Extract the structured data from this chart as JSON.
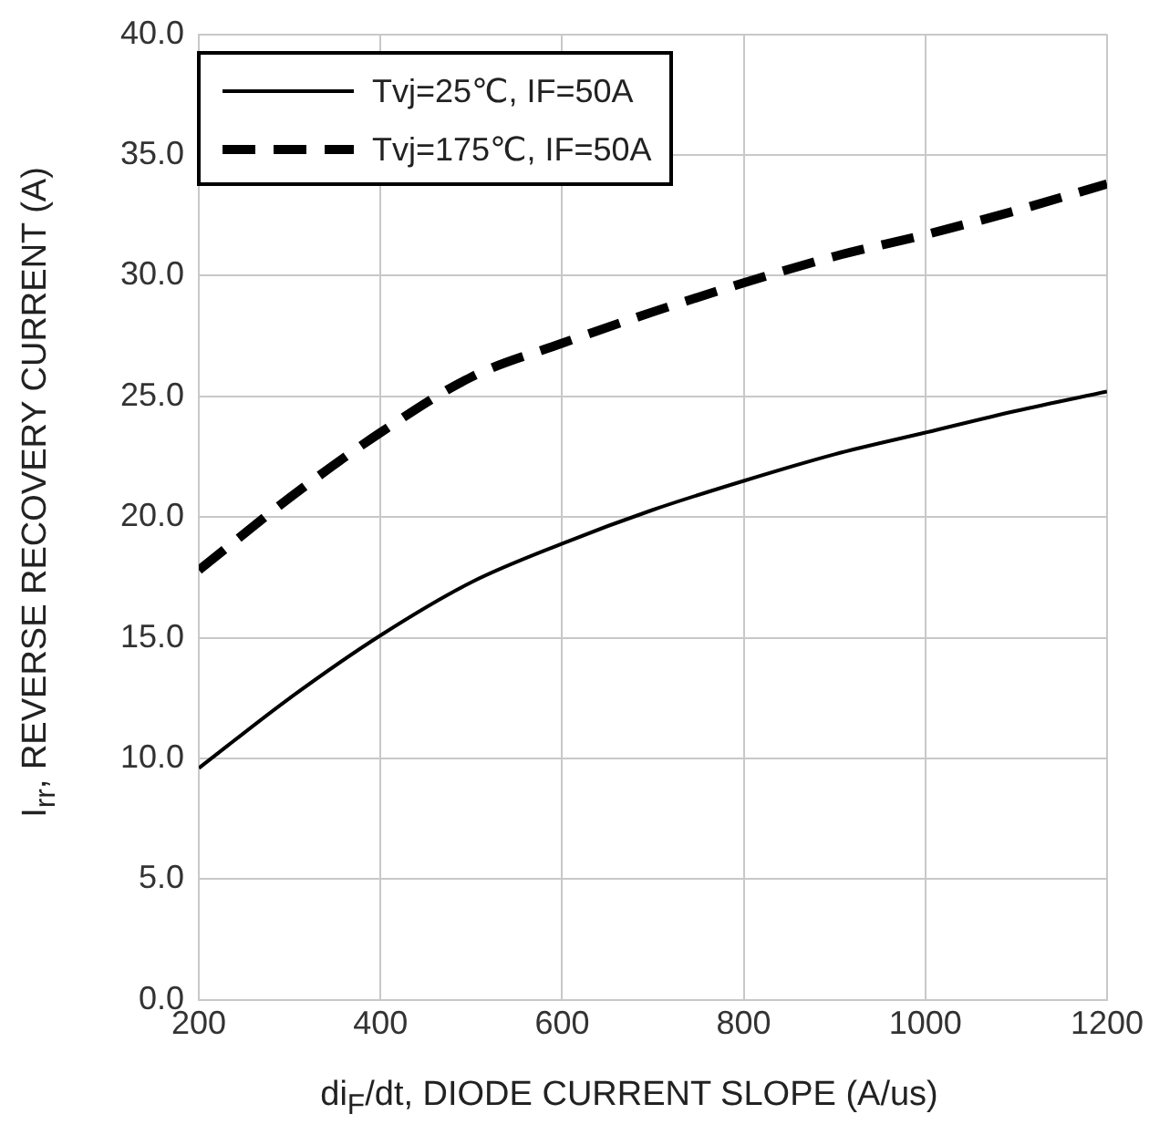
{
  "chart_data": {
    "type": "line",
    "xlabel": "di$_{F}$/dt, DIODE CURRENT SLOPE (A/us)",
    "ylabel": "I$_{rr}$, REVERSE RECOVERY CURRENT (A)",
    "x": [
      200,
      300,
      400,
      500,
      600,
      700,
      800,
      900,
      1000,
      1100,
      1200
    ],
    "series": [
      {
        "name": "Tvj=25℃, IF=50A",
        "color": "#000000",
        "line_style": "solid",
        "values": [
          9.6,
          12.5,
          15.1,
          17.3,
          18.9,
          20.3,
          21.5,
          22.6,
          23.5,
          24.4,
          25.2
        ]
      },
      {
        "name": "Tvj=175℃, IF=50A",
        "color": "#000000",
        "line_style": "dashed",
        "values": [
          17.8,
          20.8,
          23.5,
          25.8,
          27.2,
          28.5,
          29.7,
          30.8,
          31.7,
          32.7,
          33.8
        ]
      }
    ],
    "xlim": [
      200,
      1200
    ],
    "xticks": [
      200,
      400,
      600,
      800,
      1000,
      1200
    ],
    "ylim": [
      0,
      40
    ],
    "yticks": [
      {
        "value": 0,
        "label": "0.0"
      },
      {
        "value": 5,
        "label": "5.0"
      },
      {
        "value": 10,
        "label": "10.0"
      },
      {
        "value": 15,
        "label": "15.0"
      },
      {
        "value": 20,
        "label": "20.0"
      },
      {
        "value": 25,
        "label": "25.0"
      },
      {
        "value": 30,
        "label": "30.0"
      },
      {
        "value": 35,
        "label": "35.0"
      },
      {
        "value": 40,
        "label": "40.0"
      }
    ],
    "grid": true,
    "legend": "top left",
    "marker": "none"
  }
}
